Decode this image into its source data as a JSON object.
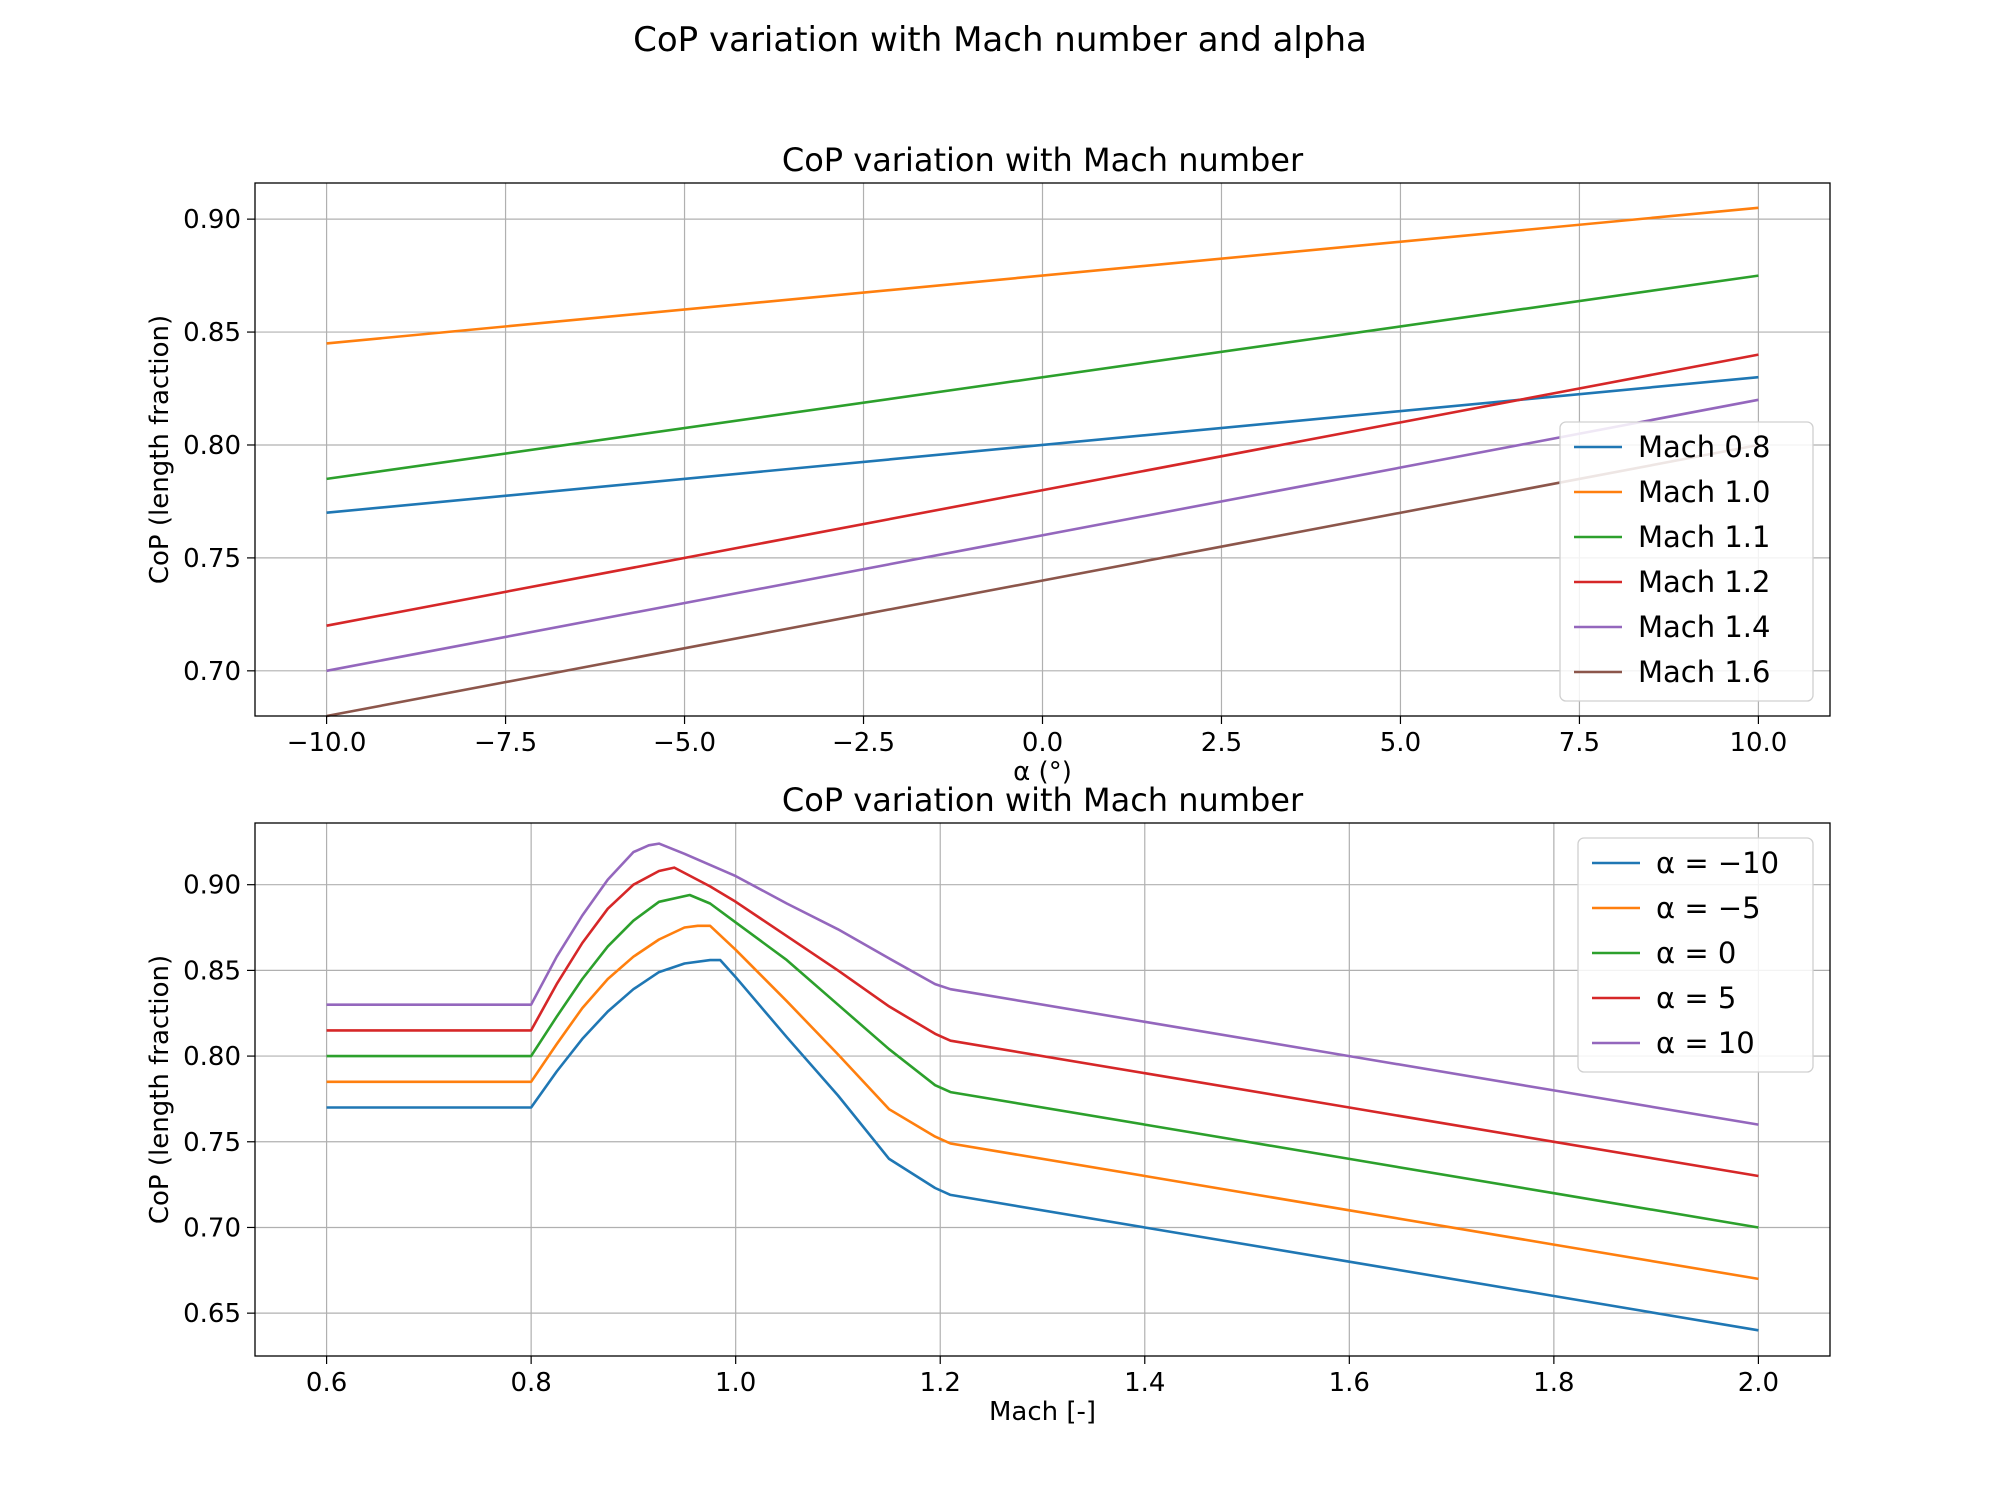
{
  "figure": {
    "suptitle": "CoP variation with Mach number and alpha"
  },
  "chart_data": [
    {
      "type": "line",
      "title": "CoP variation with Mach number",
      "xlabel": "α (°)",
      "ylabel": "CoP (length fraction)",
      "xlim": [
        -11,
        11
      ],
      "ylim": [
        0.68,
        0.916
      ],
      "xticks": [
        -10.0,
        -7.5,
        -5.0,
        -2.5,
        0.0,
        2.5,
        5.0,
        7.5,
        10.0
      ],
      "xtick_labels": [
        "−10.0",
        "−7.5",
        "−5.0",
        "−2.5",
        "0.0",
        "2.5",
        "5.0",
        "7.5",
        "10.0"
      ],
      "yticks": [
        0.7,
        0.75,
        0.8,
        0.85,
        0.9
      ],
      "ytick_labels": [
        "0.70",
        "0.75",
        "0.80",
        "0.85",
        "0.90"
      ],
      "grid": true,
      "legend": "lower-right",
      "series": [
        {
          "name": "Mach 0.8",
          "color": "#1f77b4",
          "x": [
            -10,
            10
          ],
          "y": [
            0.77,
            0.83
          ]
        },
        {
          "name": "Mach 1.0",
          "color": "#ff7f0e",
          "x": [
            -10,
            10
          ],
          "y": [
            0.845,
            0.905
          ]
        },
        {
          "name": "Mach 1.1",
          "color": "#2ca02c",
          "x": [
            -10,
            10
          ],
          "y": [
            0.785,
            0.875
          ]
        },
        {
          "name": "Mach 1.2",
          "color": "#d62728",
          "x": [
            -10,
            10
          ],
          "y": [
            0.72,
            0.84
          ]
        },
        {
          "name": "Mach 1.4",
          "color": "#9467bd",
          "x": [
            -10,
            10
          ],
          "y": [
            0.7,
            0.82
          ]
        },
        {
          "name": "Mach 1.6",
          "color": "#8c564b",
          "x": [
            -10,
            10
          ],
          "y": [
            0.68,
            0.8
          ]
        }
      ]
    },
    {
      "type": "line",
      "title": "CoP variation with Mach number",
      "xlabel": "Mach [-]",
      "ylabel": "CoP (length fraction)",
      "xlim": [
        0.53,
        2.07
      ],
      "ylim": [
        0.625,
        0.936
      ],
      "xticks": [
        0.6,
        0.8,
        1.0,
        1.2,
        1.4,
        1.6,
        1.8,
        2.0
      ],
      "xtick_labels": [
        "0.6",
        "0.8",
        "1.0",
        "1.2",
        "1.4",
        "1.6",
        "1.8",
        "2.0"
      ],
      "yticks": [
        0.65,
        0.7,
        0.75,
        0.8,
        0.85,
        0.9
      ],
      "ytick_labels": [
        "0.65",
        "0.70",
        "0.75",
        "0.80",
        "0.85",
        "0.90"
      ],
      "grid": true,
      "legend": "upper-right",
      "series": [
        {
          "name": "α = −10",
          "color": "#1f77b4",
          "x": [
            0.6,
            0.8,
            0.825,
            0.85,
            0.875,
            0.9,
            0.925,
            0.95,
            0.975,
            0.985,
            1.0,
            1.05,
            1.1,
            1.15,
            1.195,
            1.21,
            1.4,
            1.6,
            1.8,
            2.0
          ],
          "y": [
            0.77,
            0.77,
            0.791,
            0.81,
            0.826,
            0.839,
            0.849,
            0.854,
            0.856,
            0.856,
            0.846,
            0.811,
            0.777,
            0.74,
            0.723,
            0.719,
            0.7,
            0.68,
            0.66,
            0.64
          ]
        },
        {
          "name": "α = −5",
          "color": "#ff7f0e",
          "x": [
            0.6,
            0.8,
            0.825,
            0.85,
            0.875,
            0.9,
            0.925,
            0.95,
            0.963,
            0.975,
            1.0,
            1.05,
            1.1,
            1.15,
            1.195,
            1.21,
            1.4,
            1.6,
            1.8,
            2.0
          ],
          "y": [
            0.785,
            0.785,
            0.807,
            0.828,
            0.845,
            0.858,
            0.868,
            0.875,
            0.876,
            0.876,
            0.862,
            0.832,
            0.801,
            0.769,
            0.753,
            0.749,
            0.73,
            0.71,
            0.69,
            0.67
          ]
        },
        {
          "name": "α = 0",
          "color": "#2ca02c",
          "x": [
            0.6,
            0.8,
            0.825,
            0.85,
            0.875,
            0.9,
            0.925,
            0.955,
            0.975,
            1.0,
            1.05,
            1.1,
            1.15,
            1.195,
            1.21,
            1.4,
            1.6,
            1.8,
            2.0
          ],
          "y": [
            0.8,
            0.8,
            0.823,
            0.845,
            0.864,
            0.879,
            0.89,
            0.894,
            0.889,
            0.878,
            0.856,
            0.83,
            0.804,
            0.783,
            0.779,
            0.76,
            0.74,
            0.72,
            0.7
          ]
        },
        {
          "name": "α = 5",
          "color": "#d62728",
          "x": [
            0.6,
            0.8,
            0.825,
            0.85,
            0.875,
            0.9,
            0.925,
            0.94,
            0.975,
            1.0,
            1.05,
            1.1,
            1.15,
            1.195,
            1.21,
            1.4,
            1.6,
            1.8,
            2.0
          ],
          "y": [
            0.815,
            0.815,
            0.842,
            0.866,
            0.886,
            0.9,
            0.908,
            0.91,
            0.899,
            0.89,
            0.87,
            0.85,
            0.829,
            0.813,
            0.809,
            0.79,
            0.77,
            0.75,
            0.73
          ]
        },
        {
          "name": "α = 10",
          "color": "#9467bd",
          "x": [
            0.6,
            0.8,
            0.825,
            0.85,
            0.875,
            0.9,
            0.915,
            0.925,
            0.95,
            1.0,
            1.05,
            1.1,
            1.15,
            1.195,
            1.21,
            1.4,
            1.6,
            1.8,
            2.0
          ],
          "y": [
            0.83,
            0.83,
            0.858,
            0.882,
            0.903,
            0.919,
            0.923,
            0.924,
            0.918,
            0.905,
            0.889,
            0.874,
            0.857,
            0.842,
            0.839,
            0.82,
            0.8,
            0.78,
            0.76
          ]
        }
      ]
    }
  ]
}
